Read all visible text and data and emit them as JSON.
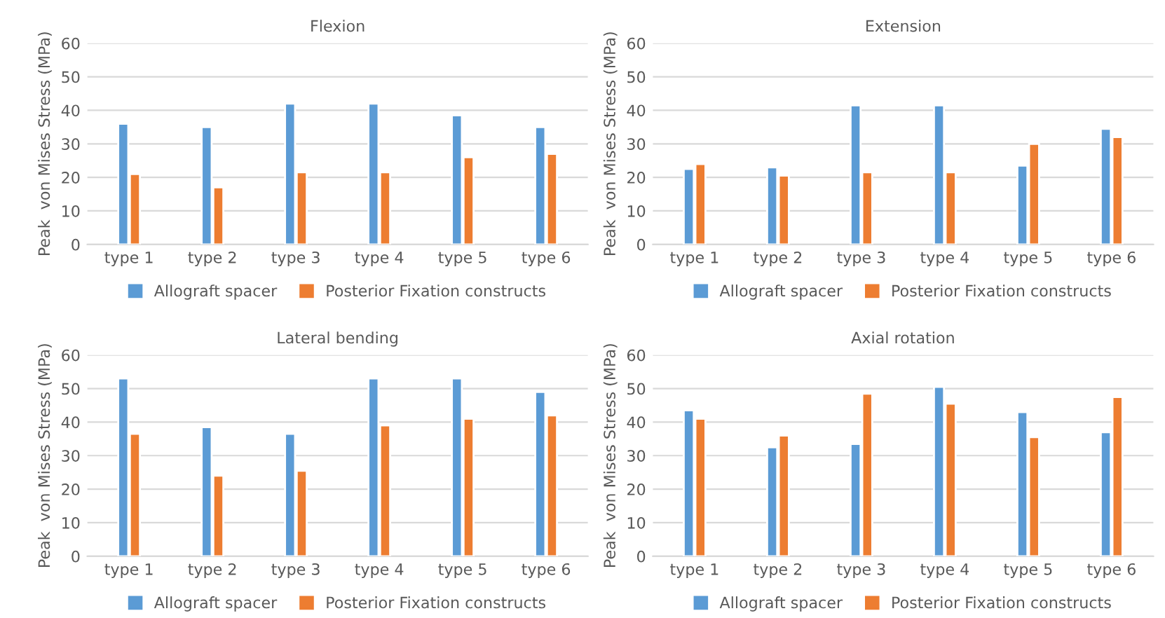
{
  "chart_data": [
    {
      "type": "bar",
      "title": "Flexion",
      "ylabel": "Peak  von Mises Stress (MPa)",
      "categories": [
        "type 1",
        "type 2",
        "type 3",
        "type 4",
        "type 5",
        "type 6"
      ],
      "ylim": [
        0,
        60
      ],
      "yticks": [
        0,
        10,
        20,
        30,
        40,
        50,
        60
      ],
      "grid": "y",
      "legend": "bottom",
      "series": [
        {
          "name": "Allograft spacer",
          "color": "#5b9bd5",
          "values": [
            36,
            35,
            42,
            42,
            38.5,
            35
          ]
        },
        {
          "name": "Posterior Fixation constructs",
          "color": "#ed7d31",
          "values": [
            21,
            17,
            21.5,
            21.5,
            26,
            27
          ]
        }
      ]
    },
    {
      "type": "bar",
      "title": "Extension",
      "ylabel": "Peak  von Mises Stress (MPa)",
      "categories": [
        "type 1",
        "type 2",
        "type 3",
        "type 4",
        "type 5",
        "type 6"
      ],
      "ylim": [
        0,
        60
      ],
      "yticks": [
        0,
        10,
        20,
        30,
        40,
        50,
        60
      ],
      "grid": "y",
      "legend": "bottom",
      "series": [
        {
          "name": "Allograft spacer",
          "color": "#5b9bd5",
          "values": [
            22.5,
            23,
            41.5,
            41.5,
            23.5,
            34.5
          ]
        },
        {
          "name": "Posterior Fixation constructs",
          "color": "#ed7d31",
          "values": [
            24,
            20.5,
            21.5,
            21.5,
            30,
            32
          ]
        }
      ]
    },
    {
      "type": "bar",
      "title": "Lateral bending",
      "ylabel": "Peak  von Mises Stress (MPa)",
      "categories": [
        "type 1",
        "type 2",
        "type 3",
        "type 4",
        "type 5",
        "type 6"
      ],
      "ylim": [
        0,
        60
      ],
      "yticks": [
        0,
        10,
        20,
        30,
        40,
        50,
        60
      ],
      "grid": "y",
      "legend": "bottom",
      "series": [
        {
          "name": "Allograft spacer",
          "color": "#5b9bd5",
          "values": [
            53,
            38.5,
            36.5,
            53,
            53,
            49
          ]
        },
        {
          "name": "Posterior Fixation constructs",
          "color": "#ed7d31",
          "values": [
            36.5,
            24,
            25.5,
            39,
            41,
            42
          ]
        }
      ]
    },
    {
      "type": "bar",
      "title": "Axial rotation",
      "ylabel": "Peak  von Mises Stress (MPa)",
      "categories": [
        "type 1",
        "type 2",
        "type 3",
        "type 4",
        "type 5",
        "type 6"
      ],
      "ylim": [
        0,
        60
      ],
      "yticks": [
        0,
        10,
        20,
        30,
        40,
        50,
        60
      ],
      "grid": "y",
      "legend": "bottom",
      "series": [
        {
          "name": "Allograft spacer",
          "color": "#5b9bd5",
          "values": [
            43.5,
            32.5,
            33.5,
            50.5,
            43,
            37
          ]
        },
        {
          "name": "Posterior Fixation constructs",
          "color": "#ed7d31",
          "values": [
            41,
            36,
            48.5,
            45.5,
            35.5,
            47.5
          ]
        }
      ]
    }
  ]
}
